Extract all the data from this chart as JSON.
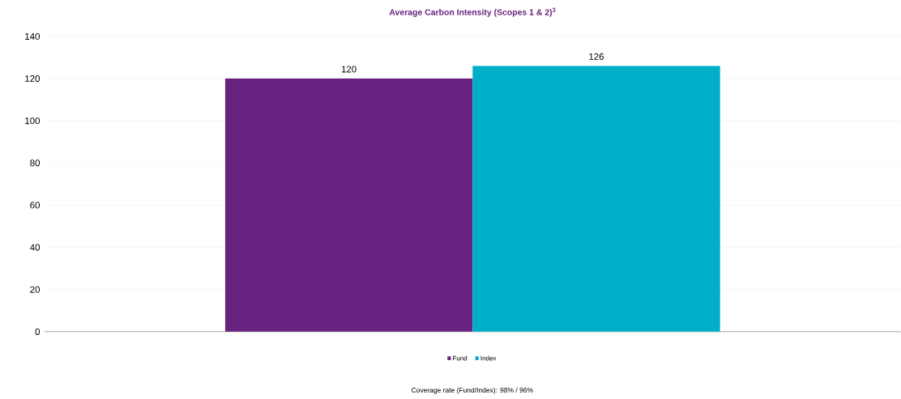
{
  "chart_data": {
    "type": "bar",
    "title": "Average Carbon Intensity (Scopes 1 & 2)$^{3}$",
    "categories": [
      null
    ],
    "series": [
      {
        "name": "Fund",
        "color": "#68227f",
        "values": [
          120
        ]
      },
      {
        "name": "Index",
        "color": "#00aec7",
        "values": [
          126
        ]
      }
    ],
    "ylim": [
      0,
      140
    ],
    "yticks": [
      0,
      20,
      40,
      60,
      80,
      100,
      120,
      140
    ],
    "grid": "y",
    "legend": "bottom",
    "data_labels": true,
    "annotations": [
      "Coverage rate (Fund/Index): 98% / 96%"
    ]
  }
}
